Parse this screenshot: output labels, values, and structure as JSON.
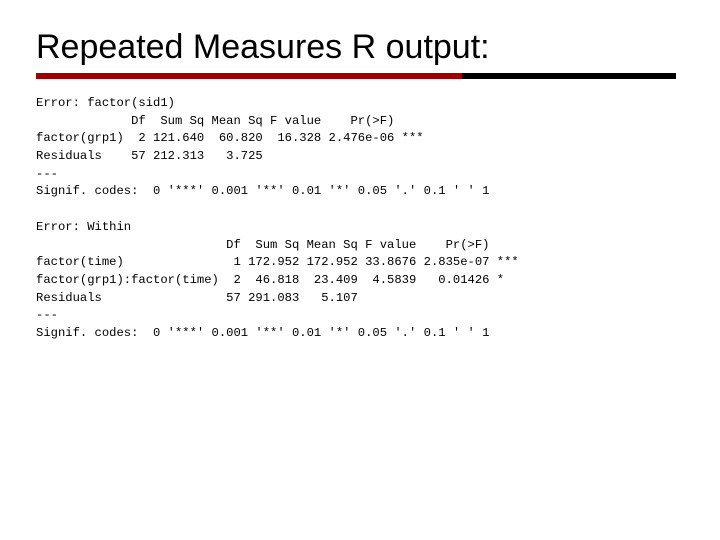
{
  "title": "Repeated Measures R output:",
  "colors": {
    "underline_red": "#a00000",
    "underline_black": "#000000",
    "text": "#000000",
    "background": "#ffffff"
  },
  "typography": {
    "title_font": "Verdana",
    "title_fontsize": 34,
    "code_font": "Courier New",
    "code_fontsize": 12
  },
  "block1": {
    "error_line": "Error: factor(sid1)",
    "header": "             Df  Sum Sq Mean Sq F value    Pr(>F)",
    "row1": "factor(grp1)  2 121.640  60.820  16.328 2.476e-06 ***",
    "row2": "Residuals    57 212.313   3.725",
    "sep": "---",
    "signif": "Signif. codes:  0 '***' 0.001 '**' 0.01 '*' 0.05 '.' 0.1 ' ' 1"
  },
  "block2": {
    "error_line": "Error: Within",
    "header": "                          Df  Sum Sq Mean Sq F value    Pr(>F)",
    "row1": "factor(time)               1 172.952 172.952 33.8676 2.835e-07 ***",
    "row2": "factor(grp1):factor(time)  2  46.818  23.409  4.5839   0.01426 *",
    "row3": "Residuals                 57 291.083   5.107",
    "sep": "---",
    "signif": "Signif. codes:  0 '***' 0.001 '**' 0.01 '*' 0.05 '.' 0.1 ' ' 1"
  }
}
